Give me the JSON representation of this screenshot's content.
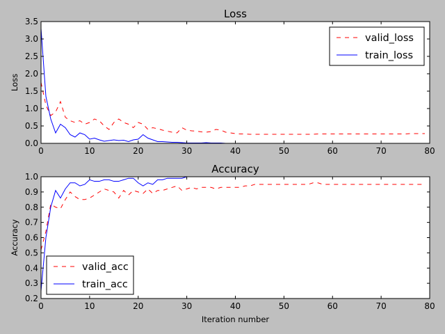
{
  "chart_data": [
    {
      "type": "line",
      "title": "Loss",
      "xlabel": "",
      "ylabel": "Loss",
      "xlim": [
        0,
        80
      ],
      "ylim": [
        0.0,
        3.5
      ],
      "xticks": [
        0,
        10,
        20,
        30,
        40,
        50,
        60,
        70,
        80
      ],
      "yticks": [
        0.0,
        0.5,
        1.0,
        1.5,
        2.0,
        2.5,
        3.0,
        3.5
      ],
      "ytick_decimals": 1,
      "grid": false,
      "legend_position": "top-right",
      "series": [
        {
          "name": "valid_loss",
          "color": "#ff0000",
          "style": "dashed",
          "x": [
            0,
            1,
            2,
            3,
            4,
            5,
            6,
            7,
            8,
            9,
            10,
            11,
            12,
            13,
            14,
            15,
            16,
            17,
            18,
            19,
            20,
            21,
            22,
            23,
            24,
            25,
            26,
            27,
            28,
            29,
            30,
            31,
            32,
            33,
            34,
            35,
            36,
            37,
            38,
            39,
            40,
            41,
            42,
            43,
            44,
            45,
            46,
            47,
            48,
            49,
            50,
            51,
            52,
            53,
            54,
            55,
            56,
            57,
            58,
            59,
            60,
            61,
            62,
            63,
            64,
            65,
            66,
            67,
            68,
            69,
            70,
            71,
            72,
            73,
            74,
            75,
            76,
            77,
            78,
            79
          ],
          "values": [
            1.75,
            1.1,
            0.8,
            0.9,
            1.2,
            0.75,
            0.65,
            0.6,
            0.65,
            0.55,
            0.6,
            0.7,
            0.65,
            0.5,
            0.4,
            0.6,
            0.7,
            0.6,
            0.55,
            0.45,
            0.6,
            0.55,
            0.4,
            0.45,
            0.42,
            0.38,
            0.35,
            0.32,
            0.3,
            0.45,
            0.38,
            0.36,
            0.35,
            0.33,
            0.32,
            0.34,
            0.4,
            0.38,
            0.32,
            0.3,
            0.28,
            0.27,
            0.27,
            0.26,
            0.26,
            0.26,
            0.26,
            0.26,
            0.26,
            0.26,
            0.26,
            0.26,
            0.26,
            0.26,
            0.26,
            0.26,
            0.26,
            0.27,
            0.27,
            0.27,
            0.27,
            0.27,
            0.27,
            0.27,
            0.27,
            0.27,
            0.27,
            0.27,
            0.27,
            0.27,
            0.27,
            0.27,
            0.27,
            0.27,
            0.27,
            0.27,
            0.28,
            0.28,
            0.28,
            0.28
          ]
        },
        {
          "name": "train_loss",
          "color": "#0000ff",
          "style": "solid",
          "x": [
            0,
            1,
            2,
            3,
            4,
            5,
            6,
            7,
            8,
            9,
            10,
            11,
            12,
            13,
            14,
            15,
            16,
            17,
            18,
            19,
            20,
            21,
            22,
            23,
            24,
            25,
            26,
            27,
            28,
            29,
            30,
            31,
            32,
            33,
            34,
            35,
            36,
            37,
            38,
            39,
            40,
            41,
            42,
            43,
            44,
            45,
            46,
            47,
            48,
            49,
            50,
            51,
            52,
            53,
            54,
            55,
            56,
            57,
            58,
            59,
            60,
            61,
            62,
            63,
            64,
            65,
            66,
            67,
            68,
            69,
            70,
            71,
            72,
            73,
            74,
            75,
            76,
            77,
            78,
            79
          ],
          "values": [
            3.3,
            1.35,
            0.7,
            0.3,
            0.55,
            0.45,
            0.25,
            0.18,
            0.3,
            0.25,
            0.12,
            0.15,
            0.1,
            0.06,
            0.08,
            0.1,
            0.08,
            0.09,
            0.05,
            0.1,
            0.12,
            0.25,
            0.15,
            0.1,
            0.05,
            0.05,
            0.04,
            0.03,
            0.03,
            0.02,
            0.01,
            0.01,
            0.01,
            0.01,
            0.02,
            0.01,
            0.01,
            0.01,
            0.0,
            0.0,
            0.0,
            0.0,
            0.0,
            0.0,
            0.0,
            0.0,
            0.0,
            0.0,
            0.0,
            0.0,
            0.0,
            0.0,
            0.0,
            0.0,
            0.0,
            0.0,
            0.0,
            0.0,
            0.0,
            0.0,
            0.0,
            0.0,
            0.0,
            0.0,
            0.0,
            0.0,
            0.0,
            0.0,
            0.0,
            0.0,
            0.0,
            0.0,
            0.0,
            0.0,
            0.0,
            0.0,
            0.0,
            0.0,
            0.0,
            0.0
          ]
        }
      ]
    },
    {
      "type": "line",
      "title": "Accuracy",
      "xlabel": "Iteration number",
      "ylabel": "Accuracy",
      "xlim": [
        0,
        80
      ],
      "ylim": [
        0.2,
        1.0
      ],
      "xticks": [
        0,
        10,
        20,
        30,
        40,
        50,
        60,
        70,
        80
      ],
      "yticks": [
        0.2,
        0.3,
        0.4,
        0.5,
        0.6,
        0.7,
        0.8,
        0.9,
        1.0
      ],
      "ytick_decimals": 1,
      "grid": false,
      "legend_position": "bottom-left",
      "series": [
        {
          "name": "valid_acc",
          "color": "#ff0000",
          "style": "dashed",
          "x": [
            0,
            1,
            2,
            3,
            4,
            5,
            6,
            7,
            8,
            9,
            10,
            11,
            12,
            13,
            14,
            15,
            16,
            17,
            18,
            19,
            20,
            21,
            22,
            23,
            24,
            25,
            26,
            27,
            28,
            29,
            30,
            31,
            32,
            33,
            34,
            35,
            36,
            37,
            38,
            39,
            40,
            41,
            42,
            43,
            44,
            45,
            46,
            47,
            48,
            49,
            50,
            51,
            52,
            53,
            54,
            55,
            56,
            57,
            58,
            59,
            60,
            61,
            62,
            63,
            64,
            65,
            66,
            67,
            68,
            69,
            70,
            71,
            72,
            73,
            74,
            75,
            76,
            77,
            78,
            79
          ],
          "values": [
            0.52,
            0.64,
            0.82,
            0.8,
            0.79,
            0.85,
            0.9,
            0.87,
            0.85,
            0.85,
            0.86,
            0.88,
            0.9,
            0.92,
            0.91,
            0.9,
            0.86,
            0.91,
            0.88,
            0.91,
            0.9,
            0.89,
            0.92,
            0.89,
            0.91,
            0.91,
            0.92,
            0.93,
            0.94,
            0.91,
            0.92,
            0.93,
            0.92,
            0.93,
            0.93,
            0.93,
            0.92,
            0.93,
            0.93,
            0.93,
            0.93,
            0.93,
            0.94,
            0.94,
            0.95,
            0.95,
            0.95,
            0.95,
            0.95,
            0.95,
            0.95,
            0.95,
            0.95,
            0.95,
            0.95,
            0.95,
            0.96,
            0.96,
            0.95,
            0.95,
            0.95,
            0.95,
            0.95,
            0.95,
            0.95,
            0.95,
            0.95,
            0.95,
            0.95,
            0.95,
            0.95,
            0.95,
            0.95,
            0.95,
            0.95,
            0.95,
            0.95,
            0.95,
            0.95,
            0.95
          ]
        },
        {
          "name": "train_acc",
          "color": "#0000ff",
          "style": "solid",
          "x": [
            0,
            1,
            2,
            3,
            4,
            5,
            6,
            7,
            8,
            9,
            10,
            11,
            12,
            13,
            14,
            15,
            16,
            17,
            18,
            19,
            20,
            21,
            22,
            23,
            24,
            25,
            26,
            27,
            28,
            29,
            30,
            31,
            32,
            33,
            34,
            35,
            36,
            37,
            38,
            39,
            40,
            41,
            42,
            43,
            44,
            45,
            46,
            47,
            48,
            49,
            50,
            51,
            52,
            53,
            54,
            55,
            56,
            57,
            58,
            59,
            60,
            61,
            62,
            63,
            64,
            65,
            66,
            67,
            68,
            69,
            70,
            71,
            72,
            73,
            74,
            75,
            76,
            77,
            78,
            79
          ],
          "values": [
            0.25,
            0.6,
            0.8,
            0.91,
            0.86,
            0.92,
            0.96,
            0.96,
            0.94,
            0.95,
            0.98,
            0.97,
            0.97,
            0.98,
            0.98,
            0.97,
            0.97,
            0.98,
            0.99,
            0.99,
            0.96,
            0.94,
            0.96,
            0.95,
            0.98,
            0.98,
            0.99,
            0.99,
            0.99,
            0.99,
            1.0,
            1.0,
            1.0,
            1.0,
            1.0,
            1.0,
            1.0,
            1.0,
            1.0,
            1.0,
            1.0,
            1.0,
            1.0,
            1.0,
            1.0,
            1.0,
            1.0,
            1.0,
            1.0,
            1.0,
            1.0,
            1.0,
            1.0,
            1.0,
            1.0,
            1.0,
            1.0,
            1.0,
            1.0,
            1.0,
            1.0,
            1.0,
            1.0,
            1.0,
            1.0,
            1.0,
            1.0,
            1.0,
            1.0,
            1.0,
            1.0,
            1.0,
            1.0,
            1.0,
            1.0,
            1.0,
            1.0,
            1.0,
            1.0,
            1.0
          ]
        }
      ]
    }
  ]
}
